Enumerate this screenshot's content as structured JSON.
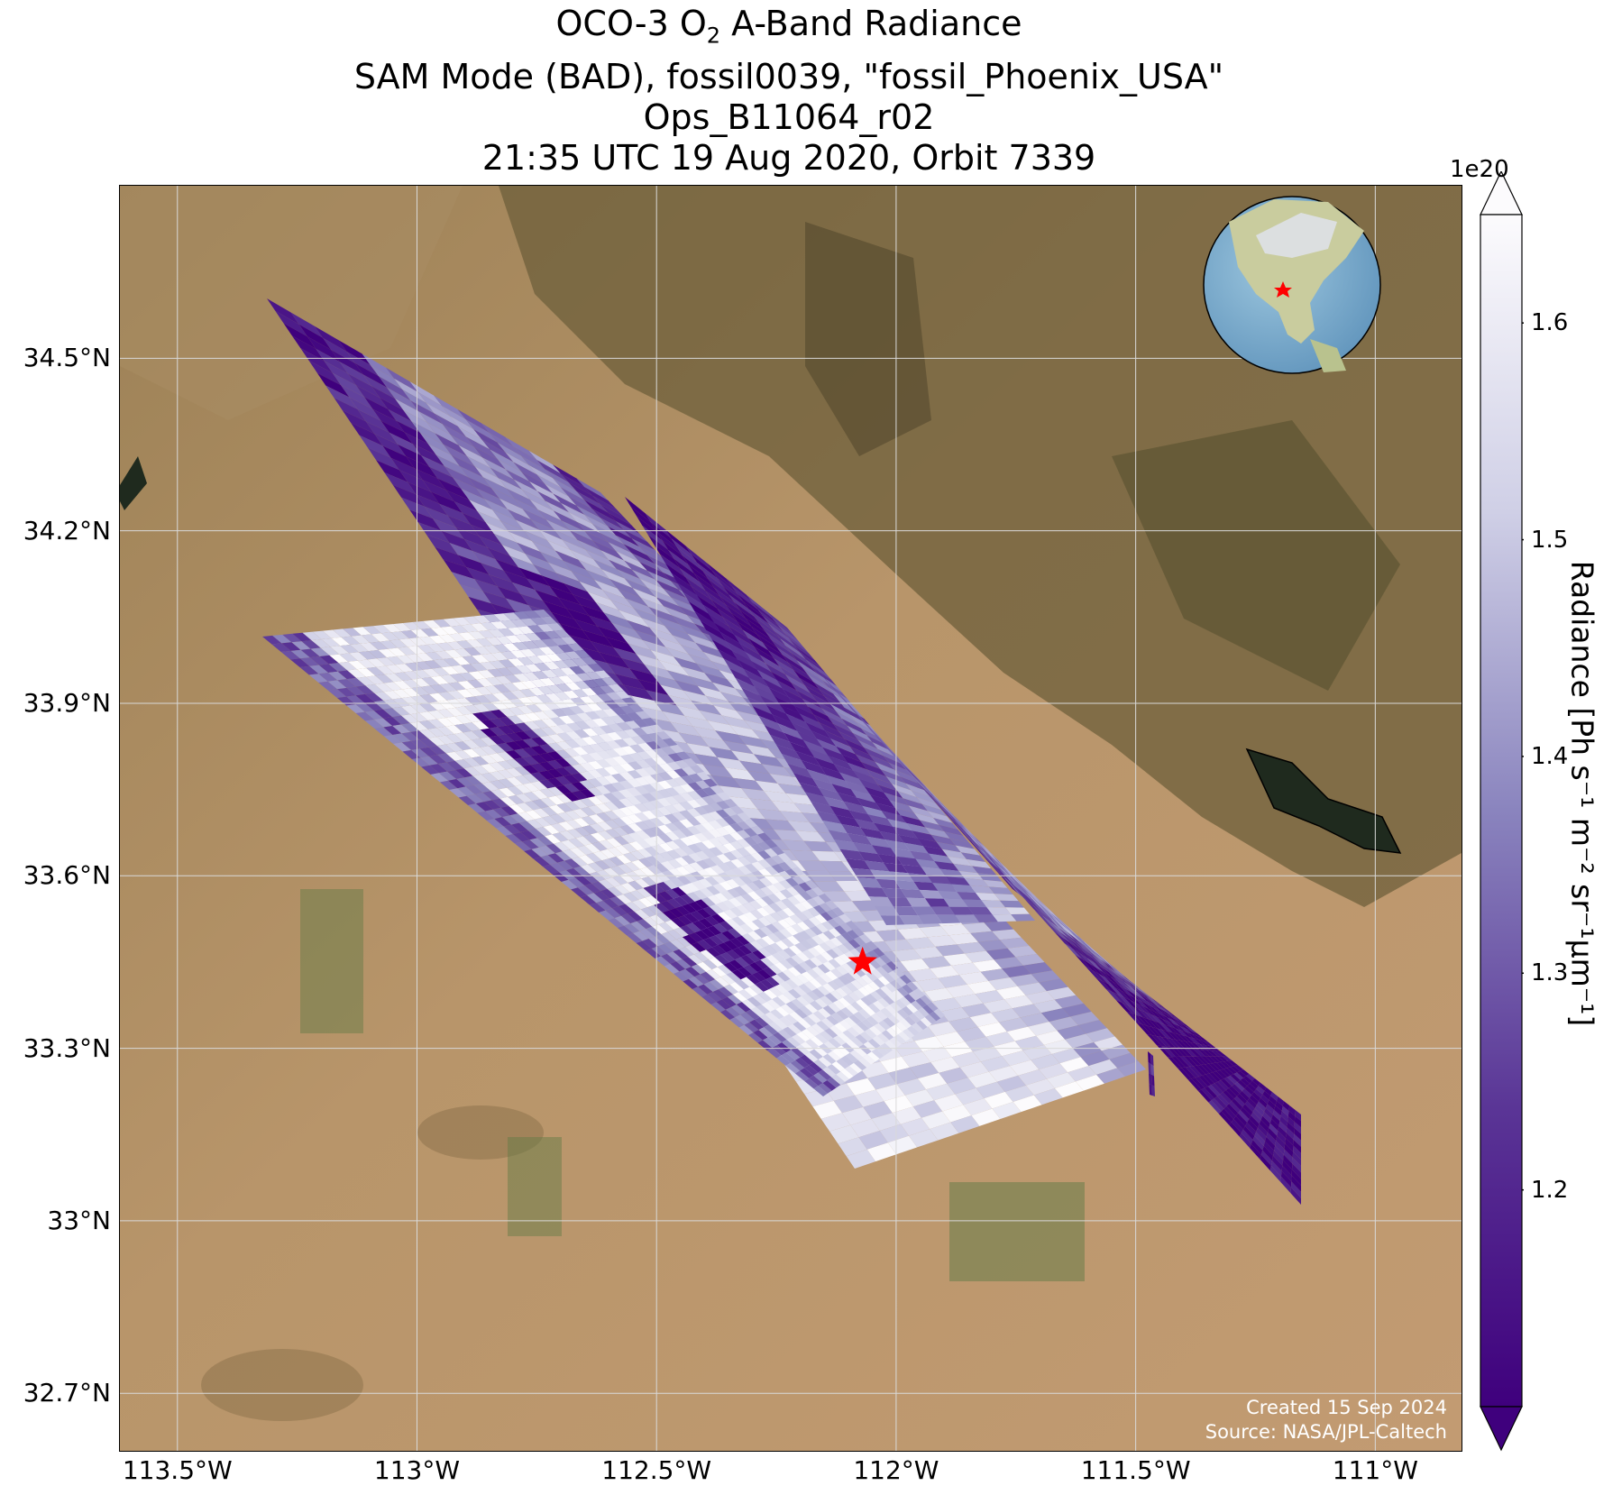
{
  "title": {
    "line1_pre": "OCO-3 O",
    "line1_sub": "2",
    "line1_post": " A-Band Radiance",
    "line2": "SAM Mode (BAD), fossil0039, \"fossil_Phoenix_USA\"",
    "line3": "Ops_B11064_r02",
    "line4": "21:35 UTC 19 Aug 2020, Orbit 7339"
  },
  "credits": {
    "created": "Created 15 Sep 2024",
    "source": "Source: NASA/JPL-Caltech"
  },
  "map": {
    "projection": "lat-lon grid",
    "lon_range": [
      -113.62,
      -110.82
    ],
    "lat_range": [
      32.6,
      34.8
    ],
    "grid": true,
    "basemap": "satellite imagery (desert terrain)",
    "target_marker": {
      "name": "red-star",
      "lon": -112.07,
      "lat": 33.45,
      "color": "#ff0000"
    },
    "inset_globe": {
      "center": "North America",
      "marker": "red-star",
      "location": "top-right"
    },
    "lat_ticks": [
      {
        "value": 34.5,
        "label": "34.5°N"
      },
      {
        "value": 34.2,
        "label": "34.2°N"
      },
      {
        "value": 33.9,
        "label": "33.9°N"
      },
      {
        "value": 33.6,
        "label": "33.6°N"
      },
      {
        "value": 33.3,
        "label": "33.3°N"
      },
      {
        "value": 33.0,
        "label": "33°N"
      },
      {
        "value": 32.7,
        "label": "32.7°N"
      }
    ],
    "lon_ticks": [
      {
        "value": -113.5,
        "label": "113.5°W"
      },
      {
        "value": -113.0,
        "label": "113°W"
      },
      {
        "value": -112.5,
        "label": "112.5°W"
      },
      {
        "value": -112.0,
        "label": "112°W"
      },
      {
        "value": -111.5,
        "label": "111.5°W"
      },
      {
        "value": -111.0,
        "label": "111°W"
      }
    ]
  },
  "colorbar": {
    "label": "Radiance [Ph s⁻¹ m⁻² sr⁻¹μm⁻¹]",
    "exponent": "1e20",
    "vmin": 1.1,
    "vmax": 1.65,
    "colormap": "Purples_r",
    "extend": "both",
    "ticks": [
      {
        "value": 1.2,
        "label": "1.2"
      },
      {
        "value": 1.3,
        "label": "1.3"
      },
      {
        "value": 1.4,
        "label": "1.4"
      },
      {
        "value": 1.5,
        "label": "1.5"
      },
      {
        "value": 1.6,
        "label": "1.6"
      }
    ],
    "colors": {
      "low": "#3f007d",
      "mid": "#8078b9",
      "high": "#fcfbfd"
    }
  }
}
